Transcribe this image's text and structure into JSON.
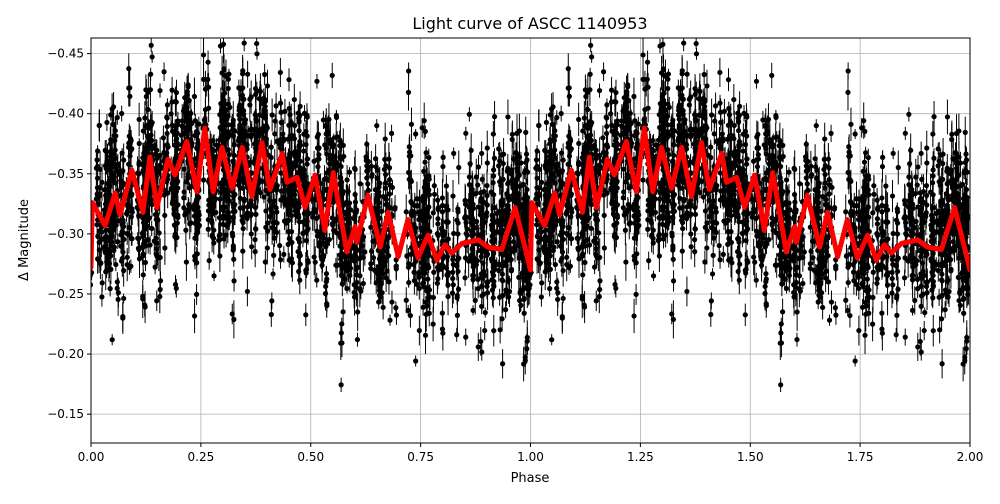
{
  "chart_data": {
    "type": "scatter",
    "title": "Light curve of ASCC 1140953",
    "xlabel": "Phase",
    "ylabel": "Δ Magnitude",
    "xlim": [
      0,
      2
    ],
    "ylim": [
      -0.463,
      -0.126
    ],
    "y_inverted": true,
    "grid": true,
    "xticks": [
      "0.00",
      "0.25",
      "0.50",
      "0.75",
      "1.00",
      "1.25",
      "1.50",
      "1.75",
      "2.00"
    ],
    "xtick_values": [
      0,
      0.25,
      0.5,
      0.75,
      1,
      1.25,
      1.5,
      1.75,
      2
    ],
    "yticks": [
      "−0.45",
      "−0.40",
      "−0.35",
      "−0.30",
      "−0.25",
      "−0.20",
      "−0.15"
    ],
    "ytick_values": [
      -0.45,
      -0.4,
      -0.35,
      -0.3,
      -0.25,
      -0.2,
      -0.15
    ],
    "observations": {
      "color": "#000000",
      "marker": "circle",
      "error_bars": true,
      "repeated_over_phase": [
        0,
        2
      ]
    },
    "model": {
      "color": "#ff0000",
      "repeated_over_phase": [
        0,
        2
      ],
      "phase": [
        0.0,
        0.003,
        0.032,
        0.055,
        0.066,
        0.093,
        0.118,
        0.134,
        0.15,
        0.175,
        0.191,
        0.218,
        0.241,
        0.259,
        0.278,
        0.298,
        0.321,
        0.344,
        0.366,
        0.389,
        0.407,
        0.435,
        0.446,
        0.469,
        0.487,
        0.51,
        0.532,
        0.551,
        0.582,
        0.601,
        0.605,
        0.63,
        0.658,
        0.676,
        0.699,
        0.721,
        0.744,
        0.767,
        0.787,
        0.805,
        0.821,
        0.844,
        0.881,
        0.903,
        0.935,
        0.965,
        1.0
      ],
      "magnitude": [
        -0.272,
        -0.326,
        -0.307,
        -0.334,
        -0.316,
        -0.353,
        -0.318,
        -0.364,
        -0.322,
        -0.362,
        -0.349,
        -0.377,
        -0.335,
        -0.388,
        -0.335,
        -0.372,
        -0.338,
        -0.372,
        -0.331,
        -0.376,
        -0.337,
        -0.367,
        -0.343,
        -0.347,
        -0.322,
        -0.349,
        -0.303,
        -0.351,
        -0.285,
        -0.306,
        -0.293,
        -0.332,
        -0.289,
        -0.318,
        -0.281,
        -0.312,
        -0.28,
        -0.299,
        -0.278,
        -0.291,
        -0.284,
        -0.292,
        -0.295,
        -0.289,
        -0.287,
        -0.322,
        -0.27
      ]
    }
  }
}
